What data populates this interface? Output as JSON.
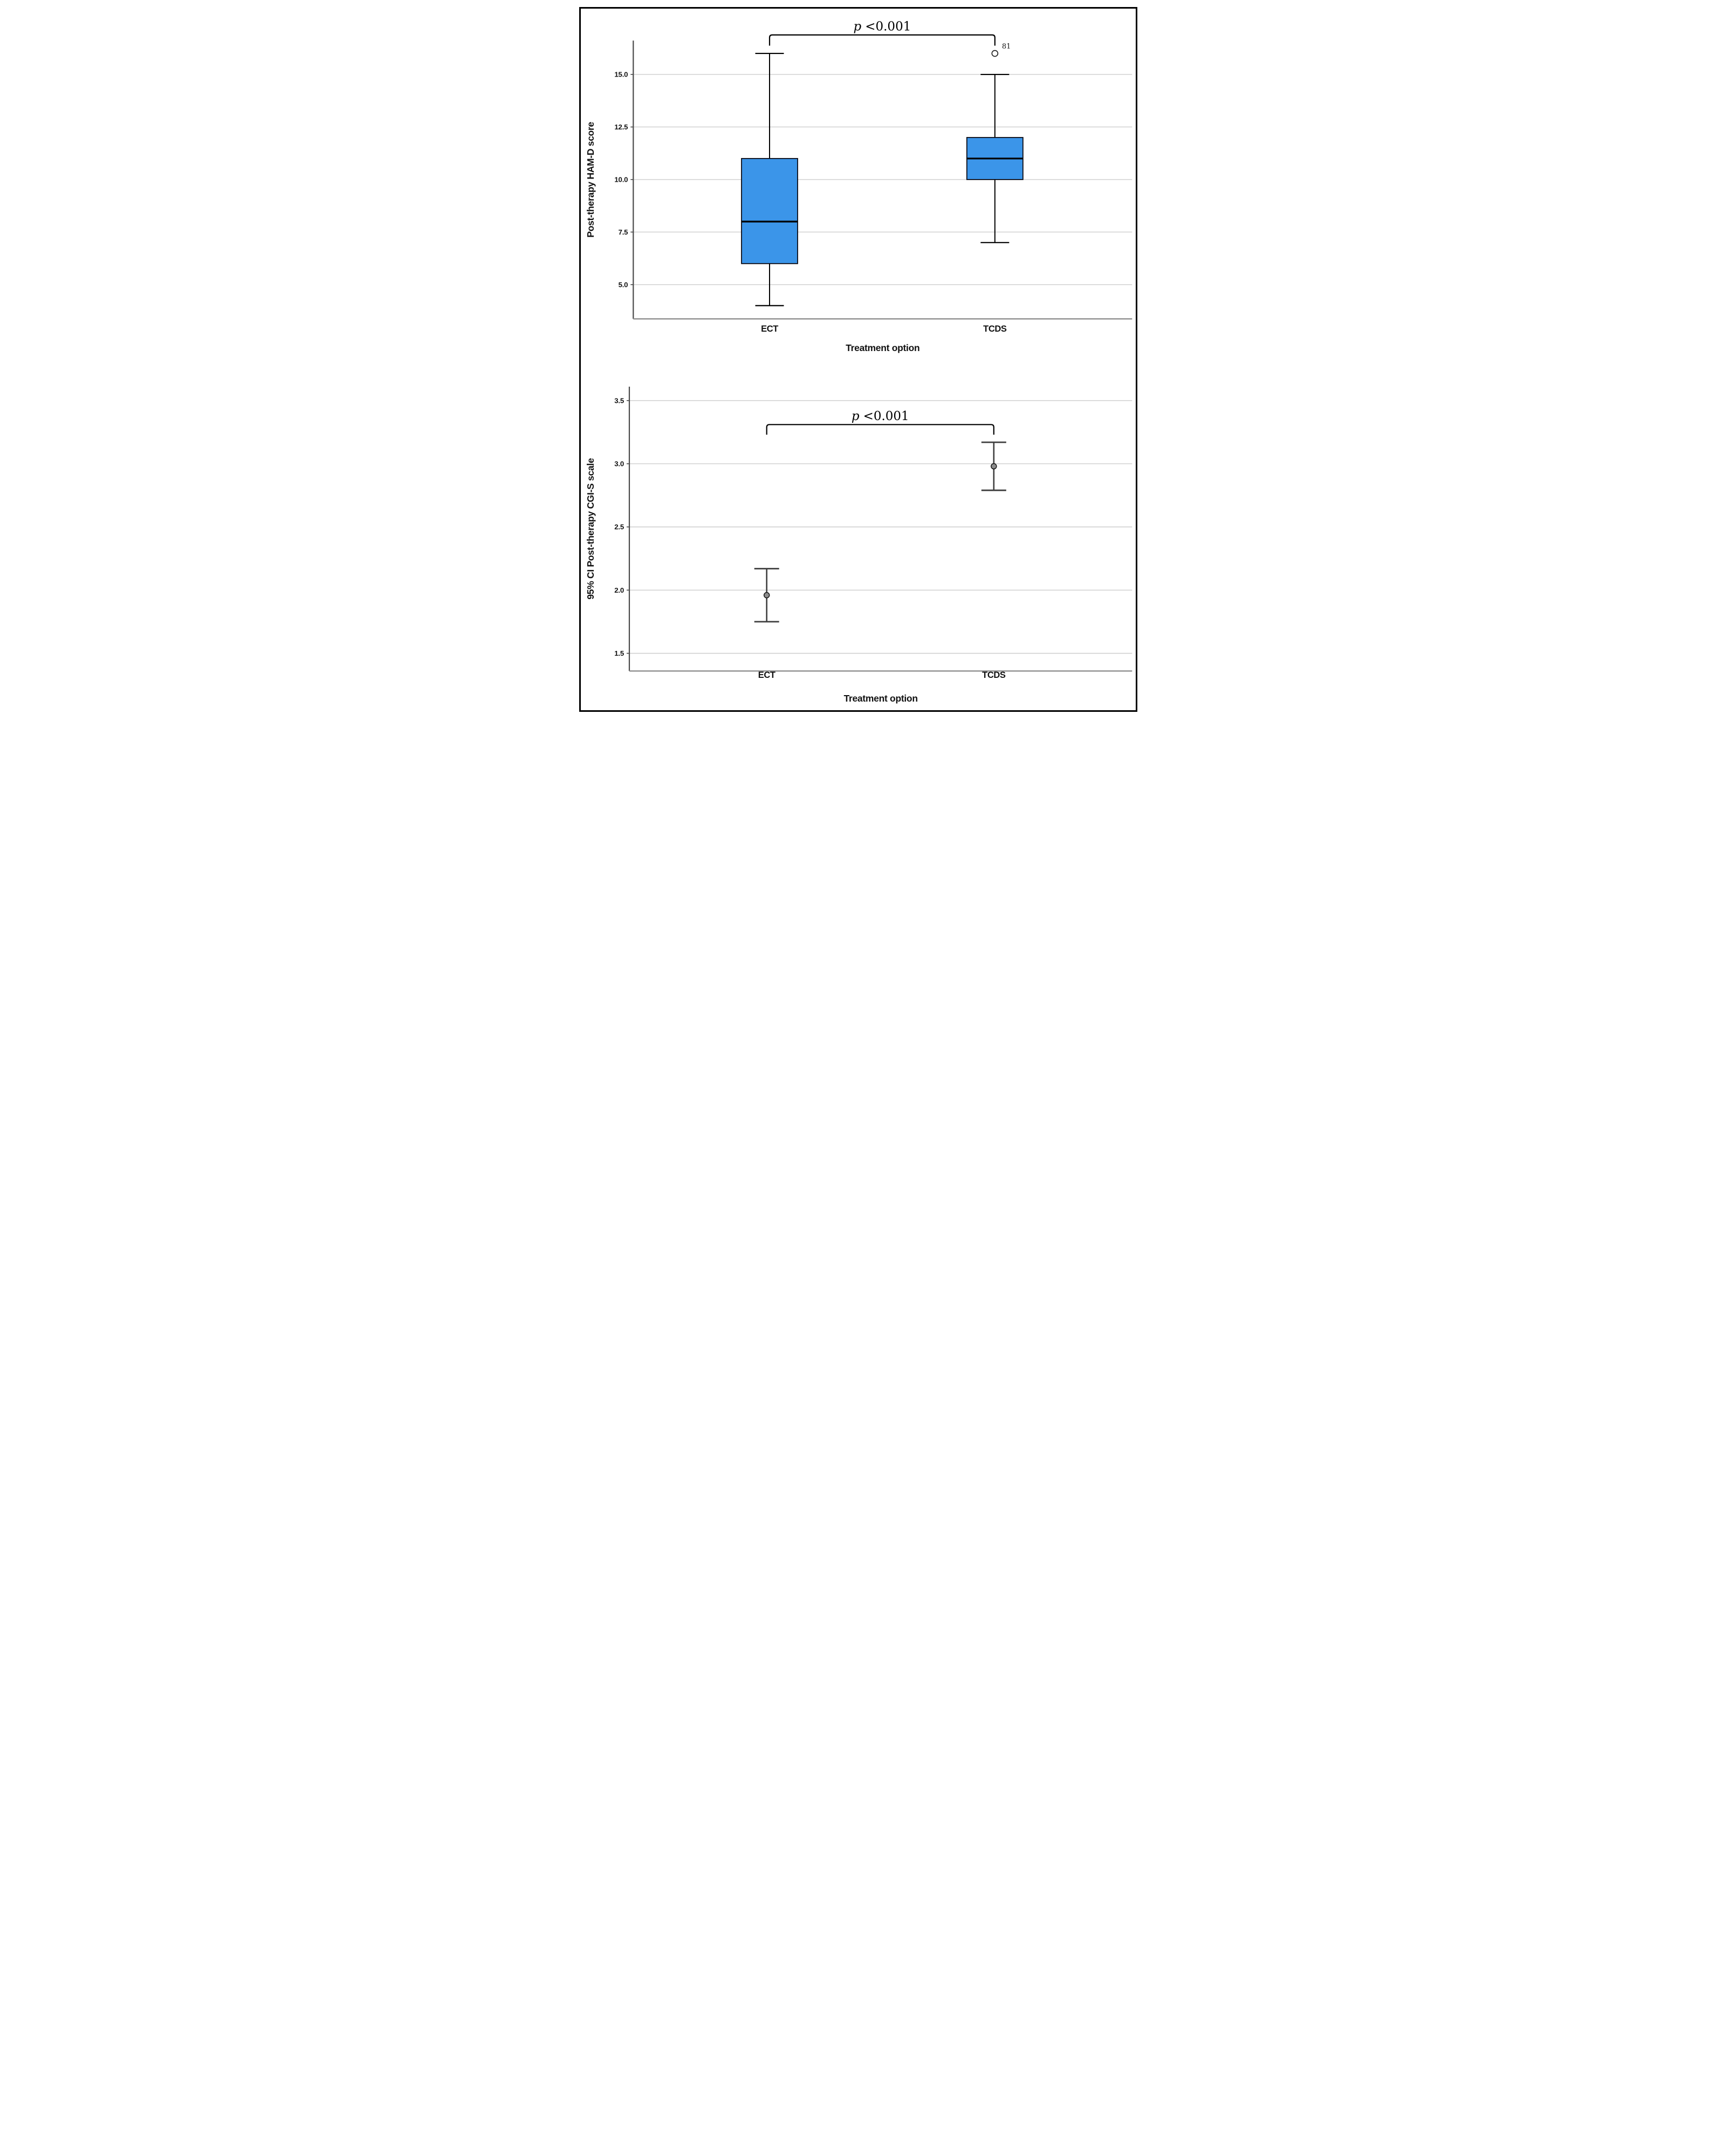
{
  "figure": {
    "background": "#ffffff",
    "frame_color": "#000000"
  },
  "chart_data": [
    {
      "type": "boxplot",
      "title": "",
      "xlabel": "Treatment option",
      "ylabel": "Post-therapy HAM-D score",
      "categories": [
        "ECT",
        "TCDS"
      ],
      "ylim": [
        3.37,
        16.61
      ],
      "yticks": [
        5.0,
        7.5,
        10.0,
        12.5,
        15.0
      ],
      "ytick_labels": [
        "5.0",
        "7.5",
        "10.0",
        "12.5",
        "15.0"
      ],
      "grid": true,
      "legend": "none",
      "series": [
        {
          "name": "ECT",
          "whisker_low": 4.0,
          "q1": 6.0,
          "median": 8.0,
          "q3": 11.0,
          "whisker_high": 16.0,
          "outliers": []
        },
        {
          "name": "TCDS",
          "whisker_low": 7.0,
          "q1": 10.0,
          "median": 11.0,
          "q3": 12.0,
          "whisker_high": 15.0,
          "outliers": [
            {
              "value": 16.0,
              "label": "81"
            }
          ]
        }
      ],
      "annotation": {
        "p_text": "p",
        "value_text": "<0.001",
        "bracket": {
          "y_value": 16.88,
          "tick_to": 16.37
        }
      },
      "box_fill": "#3B95E9",
      "box_stroke": "#0a0a14"
    },
    {
      "type": "errorbar",
      "title": "",
      "xlabel": "Treatment option",
      "ylabel": "95% CI Post-therapy CGI-S scale",
      "categories": [
        "ECT",
        "TCDS"
      ],
      "ylim": [
        1.36,
        3.61
      ],
      "yticks": [
        1.5,
        2.0,
        2.5,
        3.0,
        3.5
      ],
      "ytick_labels": [
        "1.5",
        "2.0",
        "2.5",
        "3.0",
        "3.5"
      ],
      "grid": true,
      "legend": "none",
      "series": [
        {
          "name": "ECT",
          "mean": 1.96,
          "ci_low": 1.75,
          "ci_high": 2.17
        },
        {
          "name": "TCDS",
          "mean": 2.98,
          "ci_low": 2.79,
          "ci_high": 3.17
        }
      ],
      "annotation": {
        "p_text": "p",
        "value_text": "<0.001",
        "bracket": {
          "y_value": 3.31,
          "tick_to": 3.23
        }
      },
      "marker_fill": "#8c8c8c",
      "marker_stroke": "#151515",
      "line_color": "#3f3f3f"
    }
  ]
}
